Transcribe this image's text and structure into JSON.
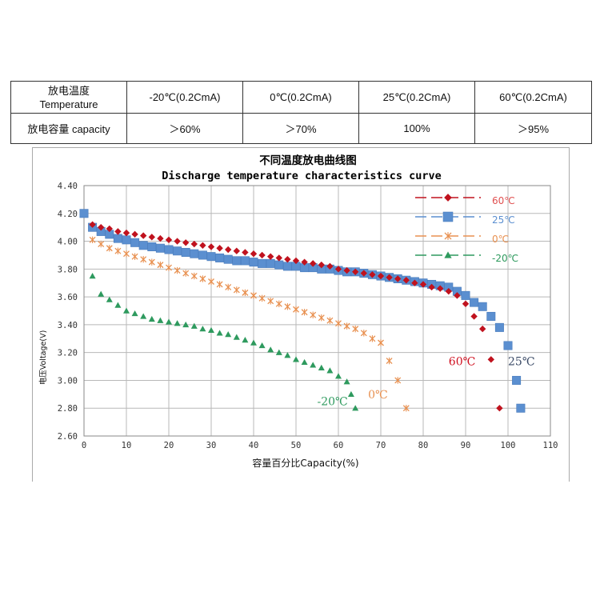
{
  "capacity_table": {
    "header": {
      "label_cn": "放电温度",
      "label_en": "Temperature",
      "cols": [
        "-20℃(0.2CmA)",
        "0℃(0.2CmA)",
        "25℃(0.2CmA)",
        "60℃(0.2CmA)"
      ]
    },
    "row": {
      "label": "放电容量 capacity",
      "values": [
        "＞60%",
        "＞70%",
        "100%",
        "＞95%"
      ]
    }
  },
  "chart_data": {
    "type": "scatter",
    "title": "不同温度放电曲线图",
    "subtitle": "Discharge temperature characteristics curve",
    "xlabel": "容量百分比Capacity(%)",
    "ylabel": "电压Voltage(V)",
    "xlim": [
      0,
      110
    ],
    "ylim": [
      2.6,
      4.4
    ],
    "xticks": [
      "0",
      "10",
      "20",
      "30",
      "40",
      "50",
      "60",
      "70",
      "80",
      "90",
      "100",
      "110"
    ],
    "yticks": [
      "2.60",
      "2.80",
      "3.00",
      "3.20",
      "3.40",
      "3.60",
      "3.80",
      "4.00",
      "4.20",
      "4.40"
    ],
    "grid": true,
    "legend_position": "top-right",
    "series": [
      {
        "name": "60℃",
        "marker": "diamond",
        "color": "#c0121e",
        "label_color": "#e05050",
        "points": [
          [
            2,
            4.12
          ],
          [
            4,
            4.1
          ],
          [
            6,
            4.09
          ],
          [
            8,
            4.07
          ],
          [
            10,
            4.06
          ],
          [
            12,
            4.05
          ],
          [
            14,
            4.04
          ],
          [
            16,
            4.03
          ],
          [
            18,
            4.02
          ],
          [
            20,
            4.01
          ],
          [
            22,
            4.0
          ],
          [
            24,
            3.99
          ],
          [
            26,
            3.98
          ],
          [
            28,
            3.97
          ],
          [
            30,
            3.96
          ],
          [
            32,
            3.95
          ],
          [
            34,
            3.94
          ],
          [
            36,
            3.93
          ],
          [
            38,
            3.92
          ],
          [
            40,
            3.91
          ],
          [
            42,
            3.9
          ],
          [
            44,
            3.89
          ],
          [
            46,
            3.88
          ],
          [
            48,
            3.87
          ],
          [
            50,
            3.86
          ],
          [
            52,
            3.85
          ],
          [
            54,
            3.84
          ],
          [
            56,
            3.83
          ],
          [
            58,
            3.82
          ],
          [
            60,
            3.8
          ],
          [
            62,
            3.79
          ],
          [
            64,
            3.78
          ],
          [
            66,
            3.77
          ],
          [
            68,
            3.76
          ],
          [
            70,
            3.75
          ],
          [
            72,
            3.74
          ],
          [
            74,
            3.73
          ],
          [
            76,
            3.72
          ],
          [
            78,
            3.7
          ],
          [
            80,
            3.69
          ],
          [
            82,
            3.67
          ],
          [
            84,
            3.66
          ],
          [
            86,
            3.64
          ],
          [
            88,
            3.61
          ],
          [
            90,
            3.55
          ],
          [
            92,
            3.46
          ],
          [
            94,
            3.37
          ],
          [
            96,
            3.15
          ],
          [
            98,
            2.8
          ]
        ]
      },
      {
        "name": "25℃",
        "marker": "square",
        "color": "#5b8fd0",
        "label_color": "#5b8fd0",
        "points": [
          [
            0,
            4.2
          ],
          [
            2,
            4.1
          ],
          [
            4,
            4.07
          ],
          [
            6,
            4.05
          ],
          [
            8,
            4.02
          ],
          [
            10,
            4.01
          ],
          [
            12,
            3.99
          ],
          [
            14,
            3.97
          ],
          [
            16,
            3.96
          ],
          [
            18,
            3.95
          ],
          [
            20,
            3.94
          ],
          [
            22,
            3.93
          ],
          [
            24,
            3.92
          ],
          [
            26,
            3.91
          ],
          [
            28,
            3.9
          ],
          [
            30,
            3.89
          ],
          [
            32,
            3.88
          ],
          [
            34,
            3.87
          ],
          [
            36,
            3.86
          ],
          [
            38,
            3.86
          ],
          [
            40,
            3.85
          ],
          [
            42,
            3.84
          ],
          [
            44,
            3.84
          ],
          [
            46,
            3.83
          ],
          [
            48,
            3.82
          ],
          [
            50,
            3.82
          ],
          [
            52,
            3.81
          ],
          [
            54,
            3.81
          ],
          [
            56,
            3.8
          ],
          [
            58,
            3.8
          ],
          [
            60,
            3.79
          ],
          [
            62,
            3.78
          ],
          [
            64,
            3.78
          ],
          [
            66,
            3.77
          ],
          [
            68,
            3.76
          ],
          [
            70,
            3.75
          ],
          [
            72,
            3.74
          ],
          [
            74,
            3.73
          ],
          [
            76,
            3.72
          ],
          [
            78,
            3.71
          ],
          [
            80,
            3.7
          ],
          [
            82,
            3.69
          ],
          [
            84,
            3.68
          ],
          [
            86,
            3.67
          ],
          [
            88,
            3.64
          ],
          [
            90,
            3.61
          ],
          [
            92,
            3.56
          ],
          [
            94,
            3.53
          ],
          [
            96,
            3.46
          ],
          [
            98,
            3.38
          ],
          [
            100,
            3.25
          ],
          [
            102,
            3.0
          ],
          [
            103,
            2.8
          ]
        ]
      },
      {
        "name": "0℃",
        "marker": "asterisk",
        "color": "#e89050",
        "label_color": "#e89050",
        "points": [
          [
            0,
            4.2
          ],
          [
            2,
            4.01
          ],
          [
            4,
            3.98
          ],
          [
            6,
            3.95
          ],
          [
            8,
            3.93
          ],
          [
            10,
            3.91
          ],
          [
            12,
            3.89
          ],
          [
            14,
            3.87
          ],
          [
            16,
            3.85
          ],
          [
            18,
            3.83
          ],
          [
            20,
            3.81
          ],
          [
            22,
            3.79
          ],
          [
            24,
            3.77
          ],
          [
            26,
            3.75
          ],
          [
            28,
            3.73
          ],
          [
            30,
            3.71
          ],
          [
            32,
            3.69
          ],
          [
            34,
            3.67
          ],
          [
            36,
            3.65
          ],
          [
            38,
            3.63
          ],
          [
            40,
            3.61
          ],
          [
            42,
            3.59
          ],
          [
            44,
            3.57
          ],
          [
            46,
            3.55
          ],
          [
            48,
            3.53
          ],
          [
            50,
            3.51
          ],
          [
            52,
            3.49
          ],
          [
            54,
            3.47
          ],
          [
            56,
            3.45
          ],
          [
            58,
            3.43
          ],
          [
            60,
            3.41
          ],
          [
            62,
            3.39
          ],
          [
            64,
            3.37
          ],
          [
            66,
            3.34
          ],
          [
            68,
            3.3
          ],
          [
            70,
            3.27
          ],
          [
            72,
            3.14
          ],
          [
            74,
            3.0
          ],
          [
            76,
            2.8
          ]
        ]
      },
      {
        "name": "-20℃",
        "marker": "triangle",
        "color": "#2e9a5e",
        "label_color": "#2e9a5e",
        "points": [
          [
            0,
            4.2
          ],
          [
            2,
            3.75
          ],
          [
            4,
            3.62
          ],
          [
            6,
            3.58
          ],
          [
            8,
            3.54
          ],
          [
            10,
            3.5
          ],
          [
            12,
            3.48
          ],
          [
            14,
            3.46
          ],
          [
            16,
            3.44
          ],
          [
            18,
            3.43
          ],
          [
            20,
            3.42
          ],
          [
            22,
            3.41
          ],
          [
            24,
            3.4
          ],
          [
            26,
            3.39
          ],
          [
            28,
            3.37
          ],
          [
            30,
            3.36
          ],
          [
            32,
            3.34
          ],
          [
            34,
            3.33
          ],
          [
            36,
            3.31
          ],
          [
            38,
            3.29
          ],
          [
            40,
            3.27
          ],
          [
            42,
            3.25
          ],
          [
            44,
            3.22
          ],
          [
            46,
            3.2
          ],
          [
            48,
            3.18
          ],
          [
            50,
            3.15
          ],
          [
            52,
            3.13
          ],
          [
            54,
            3.11
          ],
          [
            56,
            3.09
          ],
          [
            58,
            3.07
          ],
          [
            60,
            3.03
          ],
          [
            62,
            2.99
          ],
          [
            63,
            2.9
          ],
          [
            64,
            2.8
          ]
        ]
      }
    ],
    "annotations": [
      {
        "text": "60℃",
        "x": 86,
        "y": 3.11,
        "color": "#d01020"
      },
      {
        "text": "25℃",
        "x": 100,
        "y": 3.11,
        "color": "#3a4a66"
      },
      {
        "text": "0℃",
        "x": 67,
        "y": 2.87,
        "color": "#e89050"
      },
      {
        "text": "-20℃",
        "x": 55,
        "y": 2.82,
        "color": "#2e9a5e"
      }
    ]
  }
}
